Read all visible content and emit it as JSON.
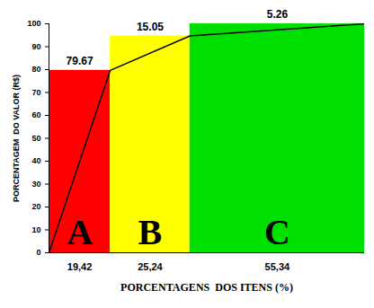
{
  "chart_data": {
    "type": "pareto",
    "xlabel": "PORCENTAGENS  DOS ITENS (%)",
    "ylabel": "PORCENTAGEM  DO VALOR (R$)",
    "categories": [
      "A",
      "B",
      "C"
    ],
    "values": [
      79.67,
      15.05,
      5.26
    ],
    "item_percentages": [
      19.42,
      25.24,
      55.34
    ],
    "item_labels": [
      "19,42",
      "25,24",
      "55,34"
    ],
    "colors": [
      "#ff0000",
      "#ffff00",
      "#00e000"
    ],
    "xlim": [
      0,
      100
    ],
    "ylim": [
      0,
      100
    ],
    "yticks": [
      0,
      10,
      20,
      30,
      40,
      50,
      60,
      70,
      80,
      90,
      100
    ],
    "data_labels": true,
    "grid": false
  }
}
